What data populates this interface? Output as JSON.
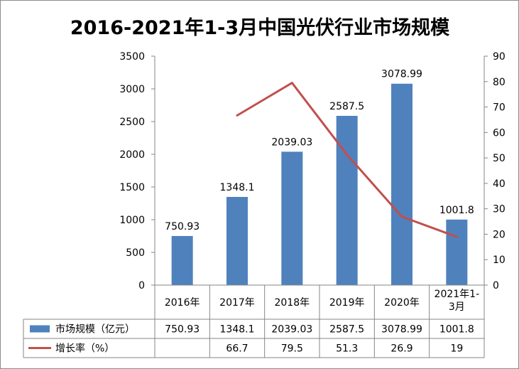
{
  "chart_data": {
    "type": "bar",
    "title": "2016-2021年1-3月中国光伏行业市场规模",
    "categories": [
      "2016年",
      "2017年",
      "2018年",
      "2019年",
      "2020年",
      "2021年1-3月"
    ],
    "series": [
      {
        "name": "市场规模（亿元）",
        "type": "bar",
        "axis": "left",
        "values": [
          750.93,
          1348.1,
          2039.03,
          2587.5,
          3078.99,
          1001.8
        ],
        "labels": [
          "750.93",
          "1348.1",
          "2039.03",
          "2587.5",
          "3078.99",
          "1001.8"
        ]
      },
      {
        "name": "增长率（%）",
        "type": "line",
        "axis": "right",
        "values": [
          null,
          66.7,
          79.5,
          51.3,
          26.9,
          19
        ],
        "labels": [
          "",
          "66.7",
          "79.5",
          "51.3",
          "26.9",
          "19"
        ]
      }
    ],
    "y_left": {
      "min": 0,
      "max": 3500,
      "step": 500
    },
    "y_right": {
      "min": 0,
      "max": 90,
      "step": 10
    },
    "grid": false,
    "legend": "data-table",
    "colors": {
      "bar": "#4f81bd",
      "line": "#c0504d"
    }
  }
}
